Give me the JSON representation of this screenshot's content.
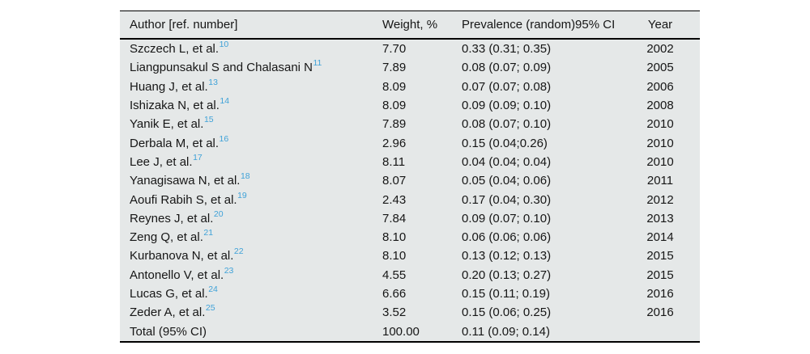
{
  "colors": {
    "table_background": "#e5e8e8",
    "rule_color": "#000000",
    "text_color": "#161616",
    "citation_link_blue": "#3fa2d8"
  },
  "table": {
    "columns": [
      "Author [ref. number]",
      "Weight, %",
      "Prevalence (random)95% CI",
      "Year"
    ],
    "rows": [
      {
        "author": "Szczech L, et al.",
        "ref": "10",
        "weight": "7.70",
        "prevalence": "0.33 (0.31; 0.35)",
        "year": "2002"
      },
      {
        "author": "Liangpunsakul S and Chalasani N",
        "ref": "11",
        "weight": "7.89",
        "prevalence": "0.08 (0.07; 0.09)",
        "year": "2005"
      },
      {
        "author": "Huang J, et al.",
        "ref": "13",
        "weight": "8.09",
        "prevalence": "0.07 (0.07; 0.08)",
        "year": "2006"
      },
      {
        "author": "Ishizaka N, et al.",
        "ref": "14",
        "weight": "8.09",
        "prevalence": "0.09 (0.09; 0.10)",
        "year": "2008"
      },
      {
        "author": "Yanik E, et al.",
        "ref": "15",
        "weight": "7.89",
        "prevalence": "0.08 (0.07; 0.10)",
        "year": "2010"
      },
      {
        "author": "Derbala M, et al.",
        "ref": "16",
        "weight": "2.96",
        "prevalence": "0.15 (0.04;0.26)",
        "year": "2010"
      },
      {
        "author": "Lee J, et al.",
        "ref": "17",
        "weight": "8.11",
        "prevalence": "0.04 (0.04; 0.04)",
        "year": "2010"
      },
      {
        "author": "Yanagisawa N, et al.",
        "ref": "18",
        "weight": "8.07",
        "prevalence": "0.05 (0.04; 0.06)",
        "year": "2011"
      },
      {
        "author": "Aoufi Rabih S, et al.",
        "ref": "19",
        "weight": "2.43",
        "prevalence": "0.17 (0.04; 0.30)",
        "year": "2012"
      },
      {
        "author": "Reynes J, et al.",
        "ref": "20",
        "weight": "7.84",
        "prevalence": "0.09 (0.07; 0.10)",
        "year": "2013"
      },
      {
        "author": "Zeng Q, et al.",
        "ref": "21",
        "weight": "8.10",
        "prevalence": "0.06 (0.06; 0.06)",
        "year": "2014"
      },
      {
        "author": "Kurbanova N, et al.",
        "ref": "22",
        "weight": "8.10",
        "prevalence": "0.13 (0.12; 0.13)",
        "year": "2015"
      },
      {
        "author": "Antonello V, et al.",
        "ref": "23",
        "weight": "4.55",
        "prevalence": "0.20 (0.13; 0.27)",
        "year": "2015"
      },
      {
        "author": "Lucas G, et al.",
        "ref": "24",
        "weight": "6.66",
        "prevalence": "0.15 (0.11; 0.19)",
        "year": "2016"
      },
      {
        "author": "Zeder A, et al.",
        "ref": "25",
        "weight": "3.52",
        "prevalence": "0.15 (0.06; 0.25)",
        "year": "2016"
      },
      {
        "author": "Total (95% CI)",
        "ref": "",
        "weight": "100.00",
        "prevalence": "0.11 (0.09; 0.14)",
        "year": ""
      }
    ]
  }
}
